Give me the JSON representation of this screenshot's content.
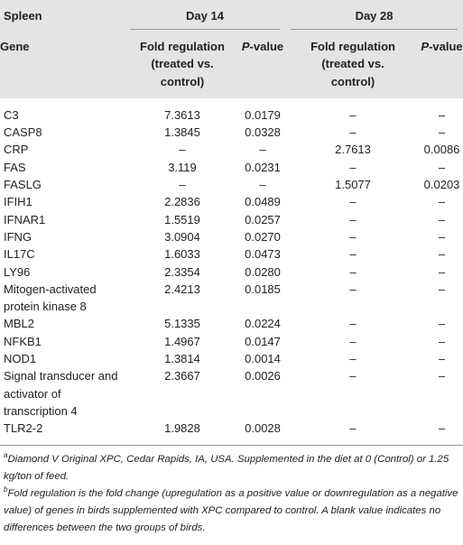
{
  "table": {
    "group_header": [
      "Spleen",
      "Day 14",
      "Day 28"
    ],
    "columns": {
      "gene": "Gene",
      "fold14": "Fold regulation (treated vs. control)",
      "p14": [
        "P",
        "-value"
      ],
      "fold28": "Fold regulation (treated vs. control)",
      "p28": [
        "P",
        "-value"
      ]
    },
    "rows": [
      [
        "C3",
        "7.3613",
        "0.0179",
        "–",
        "–"
      ],
      [
        "CASP8",
        "1.3845",
        "0.0328",
        "–",
        "–"
      ],
      [
        "CRP",
        "–",
        "–",
        "2.7613",
        "0.0086"
      ],
      [
        "FAS",
        "3.119",
        "0.0231",
        "–",
        "–"
      ],
      [
        "FASLG",
        "–",
        "–",
        "1.5077",
        "0.0203"
      ],
      [
        "IFIH1",
        "2.2836",
        "0.0489",
        "–",
        "–"
      ],
      [
        "IFNAR1",
        "1.5519",
        "0.0257",
        "–",
        "–"
      ],
      [
        "IFNG",
        "3.0904",
        "0.0270",
        "–",
        "–"
      ],
      [
        "IL17C",
        "1.6033",
        "0.0473",
        "–",
        "–"
      ],
      [
        "LY96",
        "2.3354",
        "0.0280",
        "–",
        "–"
      ],
      [
        "Mitogen-activated protein kinase 8",
        "2.4213",
        "0.0185",
        "–",
        "–"
      ],
      [
        "MBL2",
        "5.1335",
        "0.0224",
        "–",
        "–"
      ],
      [
        "NFKB1",
        "1.4967",
        "0.0147",
        "–",
        "–"
      ],
      [
        "NOD1",
        "1.3814",
        "0.0014",
        "–",
        "–"
      ],
      [
        "Signal transducer and activator of transcription 4",
        "2.3667",
        "0.0026",
        "–",
        "–"
      ],
      [
        "TLR2-2",
        "1.9828",
        "0.0028",
        "–",
        "–"
      ]
    ]
  },
  "footnotes": [
    {
      "mark": "a",
      "text": "Diamond V Original XPC, Cedar Rapids, IA, USA. Supplemented in the diet at 0 (Control) or 1.25 kg/ton of feed."
    },
    {
      "mark": "b",
      "text": "Fold regulation is the fold change (upregulation as a positive value or downregulation as a negative value) of genes in birds supplemented with XPC compared to control. A blank value indicates no differences between the two groups of birds."
    }
  ]
}
